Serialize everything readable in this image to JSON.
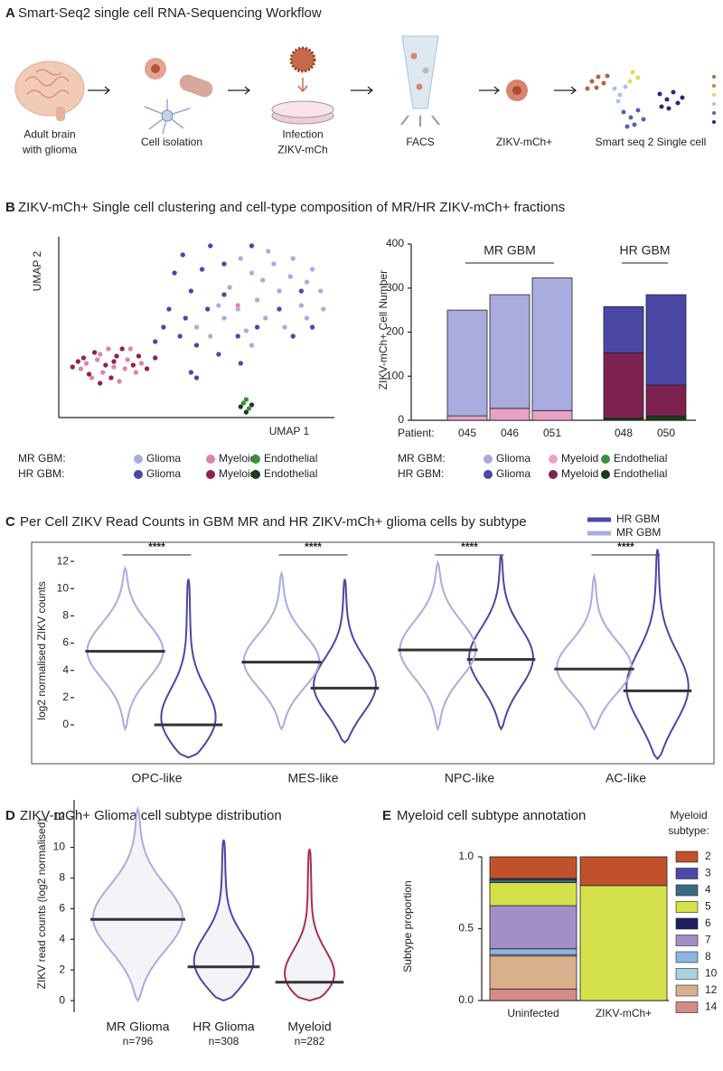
{
  "panel_a": {
    "label": "A",
    "title": "Smart-Seq2 single cell RNA-Sequencing Workflow",
    "steps": [
      [
        "Adult brain",
        "with glioma"
      ],
      [
        "Cell isolation"
      ],
      [
        "Infection",
        "ZIKV-mCh"
      ],
      [
        "FACS"
      ],
      [
        "ZIKV-mCh+"
      ],
      [
        "Smart seq 2 Single cell"
      ]
    ]
  },
  "panel_b": {
    "label": "B",
    "title": "ZIKV-mCh+ Single cell clustering and cell-type composition of MR/HR ZIKV-mCh+ fractions"
  },
  "chart_data": [
    {
      "type": "scatter",
      "xlabel": "UMAP 1",
      "ylabel": "UMAP 2",
      "xlim": [
        0,
        100
      ],
      "ylim": [
        0,
        100
      ],
      "legend_groups": [
        "MR GBM:",
        "HR GBM:"
      ],
      "series": [
        {
          "name": "Glioma",
          "group": 0,
          "color": "#a9acdf",
          "x": [
            70,
            78,
            85,
            90,
            80,
            72,
            65,
            88,
            95,
            60,
            75,
            82,
            55,
            68,
            90,
            62,
            76,
            92,
            58,
            70,
            50,
            84,
            66,
            96,
            74
          ],
          "y": [
            80,
            85,
            88,
            75,
            70,
            65,
            60,
            62,
            70,
            55,
            55,
            50,
            45,
            48,
            55,
            72,
            92,
            82,
            62,
            40,
            50,
            78,
            88,
            60,
            76
          ]
        },
        {
          "name": "Myeloid",
          "group": 0,
          "color": "#d986ac",
          "x": [
            10,
            15,
            20,
            25,
            12,
            18,
            28,
            8,
            22,
            30,
            16,
            26,
            65,
            14,
            24
          ],
          "y": [
            30,
            35,
            28,
            32,
            22,
            38,
            25,
            27,
            20,
            30,
            25,
            38,
            62,
            32,
            27
          ]
        },
        {
          "name": "Endothelial",
          "group": 0,
          "color": "#3a8f3a",
          "x": [
            67,
            69,
            68
          ],
          "y": [
            8,
            5,
            10
          ]
        },
        {
          "name": "Glioma",
          "group": 1,
          "color": "#4b47a5",
          "x": [
            45,
            42,
            48,
            52,
            55,
            40,
            46,
            60,
            38,
            50,
            44,
            58,
            65,
            80,
            88,
            72,
            85,
            60,
            35,
            54,
            66,
            92,
            48,
            50,
            70
          ],
          "y": [
            90,
            80,
            70,
            82,
            95,
            60,
            55,
            85,
            50,
            40,
            45,
            35,
            45,
            60,
            70,
            50,
            45,
            68,
            42,
            60,
            30,
            50,
            25,
            22,
            95
          ]
        },
        {
          "name": "Myeloid",
          "group": 1,
          "color": "#8e2150",
          "x": [
            5,
            9,
            13,
            17,
            21,
            27,
            32,
            11,
            19,
            23,
            7,
            29,
            15,
            35,
            20
          ],
          "y": [
            28,
            33,
            36,
            29,
            34,
            29,
            27,
            24,
            22,
            38,
            31,
            34,
            19,
            33,
            31
          ]
        },
        {
          "name": "Endothelial",
          "group": 1,
          "color": "#1b3a1b",
          "x": [
            66,
            70,
            68
          ],
          "y": [
            6,
            7,
            3
          ]
        }
      ]
    },
    {
      "type": "bar",
      "stacked": true,
      "ylabel": "ZIKV-mCh+ Cell Number",
      "xlabel": "Patient:",
      "categories": [
        "045",
        "046",
        "051",
        "048",
        "050"
      ],
      "ylim": [
        0,
        400
      ],
      "yticks": [
        0,
        100,
        200,
        300,
        400
      ],
      "groups": [
        {
          "name": "MR GBM",
          "legend": "MR GBM:"
        },
        {
          "name": "HR GBM",
          "legend": "HR GBM:"
        }
      ],
      "series": [
        {
          "name": "Glioma",
          "group": 0,
          "color": "#a9acdf",
          "values": [
            240,
            258,
            301,
            null,
            null
          ]
        },
        {
          "name": "Myeloid",
          "group": 0,
          "color": "#e7a3c6",
          "values": [
            10,
            27,
            22,
            null,
            null
          ]
        },
        {
          "name": "Endothelial",
          "group": 0,
          "color": "#3a8f3a",
          "values": [
            0,
            0,
            0,
            null,
            null
          ]
        },
        {
          "name": "Glioma",
          "group": 1,
          "color": "#4b47a5",
          "values": [
            null,
            null,
            null,
            105,
            205
          ]
        },
        {
          "name": "Myeloid",
          "group": 1,
          "color": "#7d2250",
          "values": [
            null,
            null,
            null,
            148,
            70
          ]
        },
        {
          "name": "Endothelial",
          "group": 1,
          "color": "#1b3a1b",
          "values": [
            null,
            null,
            null,
            5,
            10
          ]
        }
      ]
    },
    {
      "type": "violin",
      "panel": "C",
      "title": "Per Cell ZIKV Read Counts in GBM MR and HR ZIKV-mCh+ glioma cells by subtype",
      "ylabel": "log2 normalised ZIKV counts",
      "categories": [
        "OPC-like",
        "MES-like",
        "NPC-like",
        "AC-like"
      ],
      "ylim": [
        -2.85,
        13.4
      ],
      "yticks": [
        0,
        2,
        4,
        6,
        8,
        10,
        12
      ],
      "annotations": [
        "****",
        "****",
        "****",
        "****"
      ],
      "series": [
        {
          "name": "HR GBM",
          "color": "#4b47a5",
          "median": [
            0,
            2.7,
            4.8,
            2.5
          ],
          "min": [
            -2.4,
            -1.3,
            -0.3,
            -2.5
          ],
          "max": [
            10.7,
            10.7,
            12.5,
            12.9
          ]
        },
        {
          "name": "MR GBM",
          "color": "#a9acdf",
          "median": [
            5.4,
            4.6,
            5.5,
            4.1
          ],
          "min": [
            -0.3,
            -0.3,
            -0.3,
            -0.3
          ],
          "max": [
            11.5,
            11.1,
            11.9,
            10.9
          ]
        }
      ]
    },
    {
      "type": "violin",
      "panel": "D",
      "title": "ZIKV-mCh+ Glioma cell subtype distribution",
      "ylabel": "ZIKV read counts (log2 normalised)",
      "categories": [
        "MR Glioma",
        "HR Glioma",
        "Myeloid"
      ],
      "sublabels": [
        "n=796",
        "n=308",
        "n=282"
      ],
      "ylim": [
        -0.76,
        13.1
      ],
      "yticks": [
        0,
        2,
        4,
        6,
        8,
        10,
        12
      ],
      "series": [
        {
          "colors": [
            "#a9acdf",
            "#4b47a5",
            "#a8304f"
          ],
          "median": [
            5.3,
            2.2,
            1.2
          ],
          "min": [
            0,
            0,
            0
          ],
          "max": [
            12.5,
            10.5,
            9.9
          ]
        }
      ]
    },
    {
      "type": "bar",
      "stacked": true,
      "panel": "E",
      "title": "Myeloid cell subtype annotation",
      "ylabel": "Subtype proportion",
      "categories": [
        "Uninfected",
        "ZIKV-mCh+"
      ],
      "ylim": [
        0,
        1
      ],
      "yticks": [
        {
          "value": 0,
          "label": "0.0"
        },
        {
          "value": 0.5,
          "label": "0.5"
        },
        {
          "value": 1,
          "label": "1.0"
        }
      ],
      "legend_title": [
        "Myeloid",
        "subtype:"
      ],
      "series": [
        {
          "name": "2",
          "color": "#c0512a",
          "values": [
            0.15,
            0.2
          ]
        },
        {
          "name": "3",
          "color": "#4b4aa8",
          "values": [
            0.01,
            0
          ]
        },
        {
          "name": "4",
          "color": "#3b6b80",
          "values": [
            0.02,
            0
          ]
        },
        {
          "name": "5",
          "color": "#d5e14a",
          "values": [
            0.16,
            0.8
          ]
        },
        {
          "name": "6",
          "color": "#1f1f5e",
          "values": [
            0,
            0
          ]
        },
        {
          "name": "7",
          "color": "#a28fc7",
          "values": [
            0.3,
            0
          ]
        },
        {
          "name": "8",
          "color": "#8db7e1",
          "values": [
            0.04,
            0
          ]
        },
        {
          "name": "10",
          "color": "#a8d3df",
          "values": [
            0.01,
            0
          ]
        },
        {
          "name": "12",
          "color": "#d9b08c",
          "values": [
            0.23,
            0
          ]
        },
        {
          "name": "14",
          "color": "#d58b88",
          "values": [
            0.08,
            0
          ]
        }
      ]
    }
  ]
}
